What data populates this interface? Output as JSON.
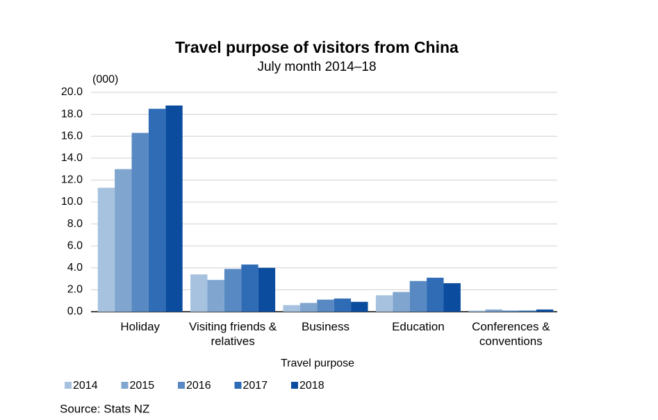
{
  "chart_data": {
    "type": "bar",
    "title": "Travel purpose of visitors from China",
    "subtitle": "July month 2014–18",
    "y_label": "(000)",
    "x_label": "Travel purpose",
    "source": "Source: Stats NZ",
    "categories": [
      "Holiday",
      "Visiting friends & relatives",
      "Business",
      "Education",
      "Conferences & conventions"
    ],
    "series": [
      {
        "name": "2014",
        "color": "#a7c2df",
        "values": [
          11.3,
          3.4,
          0.6,
          1.5,
          0.1
        ]
      },
      {
        "name": "2015",
        "color": "#80a6d0",
        "values": [
          13.0,
          2.9,
          0.8,
          1.8,
          0.2
        ]
      },
      {
        "name": "2016",
        "color": "#5889c3",
        "values": [
          16.3,
          3.9,
          1.1,
          2.8,
          0.1
        ]
      },
      {
        "name": "2017",
        "color": "#2f6cb5",
        "values": [
          18.5,
          4.3,
          1.2,
          3.1,
          0.1
        ]
      },
      {
        "name": "2018",
        "color": "#0b4c9e",
        "values": [
          18.8,
          4.0,
          0.9,
          2.6,
          0.2
        ]
      }
    ],
    "ylim": [
      0,
      20
    ],
    "yticks": [
      {
        "value": 0,
        "label": "0.0"
      },
      {
        "value": 2,
        "label": "2.0"
      },
      {
        "value": 4,
        "label": "4.0"
      },
      {
        "value": 6,
        "label": "6.0"
      },
      {
        "value": 8,
        "label": "8.0"
      },
      {
        "value": 10,
        "label": "10.0"
      },
      {
        "value": 12,
        "label": "12.0"
      },
      {
        "value": 14,
        "label": "14.0"
      },
      {
        "value": 16,
        "label": "16.0"
      },
      {
        "value": 18,
        "label": "18.0"
      },
      {
        "value": 20,
        "label": "20.0"
      }
    ],
    "grid": true,
    "legend": "bottom"
  }
}
